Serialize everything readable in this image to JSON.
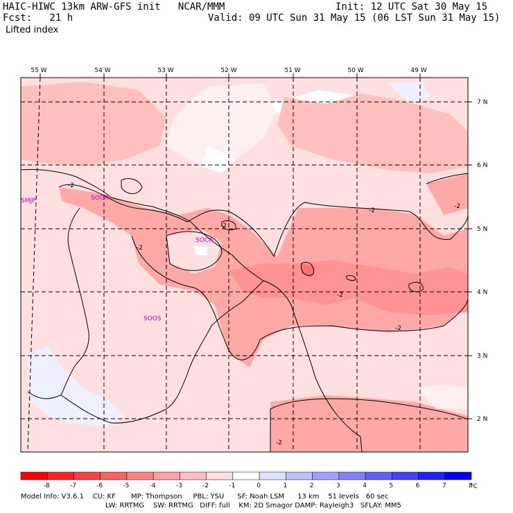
{
  "header": {
    "model_title": "HAIC-HIWC 13km ARW-GFS init   NCAR/MMM",
    "init_time": "Init: 12 UTC Sat 30 May 15",
    "forecast_hour": "Fcst:   21 h",
    "valid_time": "Valid: 09 UTC Sun 31 May 15 (06 LST Sun 31 May 15)",
    "field_name": "Lifted index"
  },
  "map": {
    "lon_labels": [
      "55 W",
      "54 W",
      "53 W",
      "52 W",
      "51 W",
      "50 W",
      "49 W"
    ],
    "lat_labels": [
      "7 N",
      "6 N",
      "5 N",
      "4 N",
      "3 N",
      "2 N"
    ],
    "stations": [
      "SMJP",
      "SOGR",
      "SOCA",
      "SOOS"
    ],
    "contour_labels": [
      "-2",
      "-2",
      "-2",
      "-2",
      "-2",
      "-2",
      "-2",
      "-2"
    ]
  },
  "colorbar": {
    "tick_labels": [
      "-8",
      "-7",
      "-6",
      "-5",
      "-4",
      "-3",
      "-2",
      "-1",
      "0",
      "1",
      "2",
      "3",
      "4",
      "5",
      "6",
      "7",
      "8"
    ],
    "unit": "°C",
    "colors": [
      "#ff0000",
      "#ff2020",
      "#ff4040",
      "#ff6060",
      "#ff8080",
      "#ffa0a0",
      "#ffbfbf",
      "#ffdfdf",
      "#ffffff",
      "#dfdfff",
      "#bfbfff",
      "#a0a0ff",
      "#8080ff",
      "#6060ff",
      "#4040ff",
      "#2020ff",
      "#0000ff"
    ]
  },
  "footer": {
    "line1": "Model Info: V3.6.1    CU: KF       MP: Thompson     PBL: YSU      SF: Noah LSM      13 km    51 levels   60 sec",
    "line2": "LW: RRTMG    SW: RRTMG   DIFF: full    KM: 2D Smagor DAMP: Rayleigh3   SFLAY: MM5"
  }
}
